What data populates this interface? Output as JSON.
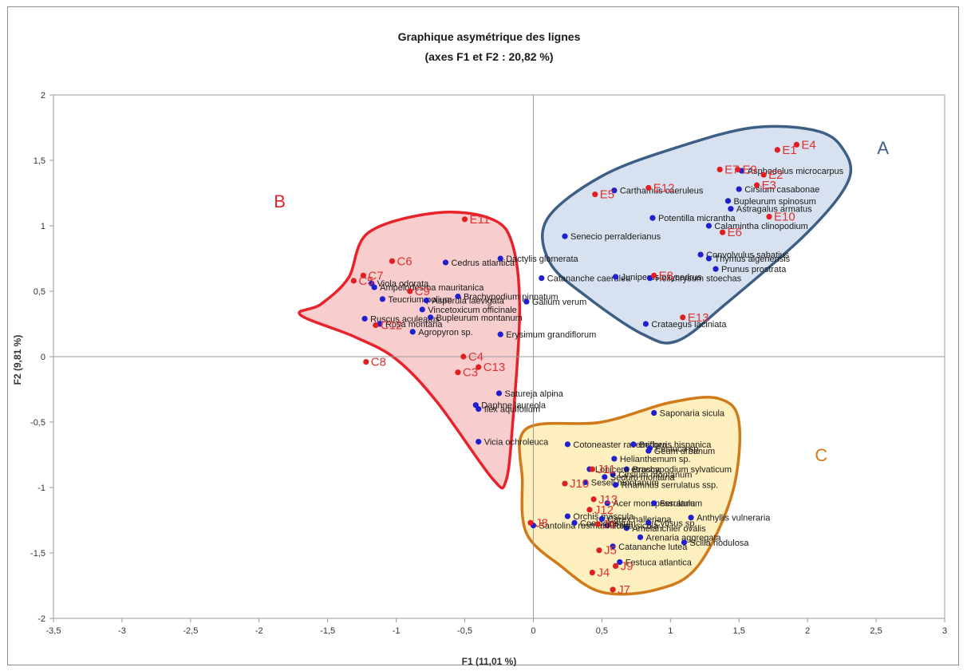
{
  "chart_data": {
    "type": "scatter",
    "title": "Graphique asymétrique des lignes",
    "subtitle": "(axes F1 et F2 : 20,82 %)",
    "xlabel": "F1 (11,01 %)",
    "ylabel": "F2 (9,81 %)",
    "xlim": [
      -3.5,
      3
    ],
    "ylim": [
      -2,
      2
    ],
    "xticks": [
      "-3,5",
      "-3",
      "-2,5",
      "-2",
      "-1,5",
      "-1",
      "-0,5",
      "0",
      "0,5",
      "1",
      "1,5",
      "2",
      "2,5",
      "3"
    ],
    "yticks": [
      "2",
      "1,5",
      "1",
      "0,5",
      "0",
      "-0,5",
      "-1",
      "-1,5",
      "-2"
    ],
    "grid": false,
    "colors": {
      "species": "#1f1fd0",
      "observations": "#e02020",
      "group_a": "#3d5f86",
      "group_b": "#e8222a",
      "group_c": "#d07a1a"
    },
    "groups": [
      {
        "label": "A",
        "color": "#3d5f86",
        "fill": "#c9d7ea",
        "hull": [
          [
            0.1,
            1.05
          ],
          [
            0.5,
            1.38
          ],
          [
            1.05,
            1.6
          ],
          [
            1.6,
            1.75
          ],
          [
            2.05,
            1.73
          ],
          [
            2.25,
            1.6
          ],
          [
            2.3,
            1.35
          ],
          [
            2.0,
            0.95
          ],
          [
            1.4,
            0.4
          ],
          [
            1.05,
            0.12
          ],
          [
            0.8,
            0.17
          ],
          [
            0.4,
            0.45
          ],
          [
            0.12,
            0.72
          ]
        ]
      },
      {
        "label": "B",
        "color": "#e8222a",
        "fill": "#f4bcbc",
        "hull": [
          [
            -1.35,
            0.6
          ],
          [
            -1.2,
            0.95
          ],
          [
            -0.7,
            1.1
          ],
          [
            -0.3,
            1.05
          ],
          [
            -0.15,
            0.85
          ],
          [
            -0.1,
            0.35
          ],
          [
            -0.15,
            -0.5
          ],
          [
            -0.2,
            -0.95
          ],
          [
            -0.3,
            -0.93
          ],
          [
            -0.7,
            -0.35
          ],
          [
            -1.0,
            -0.02
          ],
          [
            -1.3,
            0.15
          ],
          [
            -1.7,
            0.32
          ],
          [
            -1.55,
            0.4
          ]
        ]
      },
      {
        "label": "C",
        "color": "#d07a1a",
        "fill": "#fde9a8",
        "hull": [
          [
            -0.05,
            -0.55
          ],
          [
            0.5,
            -0.5
          ],
          [
            1.0,
            -0.35
          ],
          [
            1.35,
            -0.32
          ],
          [
            1.5,
            -0.5
          ],
          [
            1.45,
            -1.05
          ],
          [
            1.2,
            -1.6
          ],
          [
            0.9,
            -1.78
          ],
          [
            0.5,
            -1.8
          ],
          [
            0.2,
            -1.6
          ],
          [
            -0.05,
            -1.35
          ],
          [
            -0.08,
            -0.95
          ]
        ]
      }
    ],
    "species": [
      {
        "name": "Asphodelus microcarpus",
        "x": 1.52,
        "y": 1.42
      },
      {
        "name": "Carthamus caeruleus",
        "x": 0.59,
        "y": 1.27
      },
      {
        "name": "Cirsium casabonae",
        "x": 1.5,
        "y": 1.28
      },
      {
        "name": "Bupleurum spinosum",
        "x": 1.42,
        "y": 1.19
      },
      {
        "name": "Astragalus armatus",
        "x": 1.44,
        "y": 1.13
      },
      {
        "name": "Potentilla micrantha",
        "x": 0.87,
        "y": 1.06
      },
      {
        "name": "Calamintha clinopodium",
        "x": 1.28,
        "y": 1.0
      },
      {
        "name": "Senecio perralderianus",
        "x": 0.23,
        "y": 0.92
      },
      {
        "name": "Convolvulus sabatius",
        "x": 1.22,
        "y": 0.78
      },
      {
        "name": "Thymus algeriensis",
        "x": 1.28,
        "y": 0.75
      },
      {
        "name": "Prunus prostrata",
        "x": 1.33,
        "y": 0.67
      },
      {
        "name": "Catananche caerulea",
        "x": 0.06,
        "y": 0.6
      },
      {
        "name": "Juniperus oxycedrus",
        "x": 0.6,
        "y": 0.61
      },
      {
        "name": "Helichrysum stoechas",
        "x": 0.85,
        "y": 0.6
      },
      {
        "name": "Crataegus laciniata",
        "x": 0.82,
        "y": 0.25
      },
      {
        "name": "Dactylis glomerata",
        "x": -0.24,
        "y": 0.75
      },
      {
        "name": "Cedrus atlantica",
        "x": -0.64,
        "y": 0.72
      },
      {
        "name": "Viola odorata",
        "x": -1.18,
        "y": 0.56
      },
      {
        "name": "Ampelodesma mauritanica",
        "x": -1.16,
        "y": 0.53
      },
      {
        "name": "Brachypodium pinnatum",
        "x": -0.55,
        "y": 0.46
      },
      {
        "name": "Teucrium polium",
        "x": -1.1,
        "y": 0.44
      },
      {
        "name": "Asperula laevigata",
        "x": -0.78,
        "y": 0.43
      },
      {
        "name": "Galium verum",
        "x": -0.05,
        "y": 0.42
      },
      {
        "name": "Vincetoxicum officinale",
        "x": -0.81,
        "y": 0.36
      },
      {
        "name": "Ruscus aculeatus",
        "x": -1.23,
        "y": 0.29
      },
      {
        "name": "Bupleurum montanum",
        "x": -0.75,
        "y": 0.3
      },
      {
        "name": "Rosa montana",
        "x": -1.12,
        "y": 0.25
      },
      {
        "name": "Agropyron sp.",
        "x": -0.88,
        "y": 0.19
      },
      {
        "name": "Erysimum grandiflorum",
        "x": -0.24,
        "y": 0.17
      },
      {
        "name": "Satureja alpina",
        "x": -0.25,
        "y": -0.28
      },
      {
        "name": "Daphne laureola",
        "x": -0.42,
        "y": -0.37
      },
      {
        "name": "Ilex aquifolium",
        "x": -0.4,
        "y": -0.4
      },
      {
        "name": "Vicia ochroleuca",
        "x": -0.4,
        "y": -0.65
      },
      {
        "name": "Saponaria sicula",
        "x": 0.88,
        "y": -0.43
      },
      {
        "name": "Cotoneaster racemiflora",
        "x": 0.25,
        "y": -0.67
      },
      {
        "name": "Berberis hispanica",
        "x": 0.73,
        "y": -0.67
      },
      {
        "name": "Festuca sp.",
        "x": 0.85,
        "y": -0.7
      },
      {
        "name": "Geum urbanum",
        "x": 0.84,
        "y": -0.72
      },
      {
        "name": "Helianthemum sp.",
        "x": 0.59,
        "y": -0.78
      },
      {
        "name": "Brachypodium sylvaticum",
        "x": 0.68,
        "y": -0.86
      },
      {
        "name": "Lonicera etrusca",
        "x": 0.41,
        "y": -0.86
      },
      {
        "name": "Cirsium montanum",
        "x": 0.58,
        "y": -0.9
      },
      {
        "name": "Sedum montana",
        "x": 0.52,
        "y": -0.92
      },
      {
        "name": "Seseli montanum",
        "x": 0.38,
        "y": -0.96
      },
      {
        "name": "Rhamnus serrulatus ssp.",
        "x": 0.6,
        "y": -0.98
      },
      {
        "name": "Acer monspessulanum",
        "x": 0.54,
        "y": -1.12
      },
      {
        "name": "Serratula",
        "x": 0.88,
        "y": -1.12
      },
      {
        "name": "Anthyllis vulneraria",
        "x": 1.15,
        "y": -1.23
      },
      {
        "name": "Orchis mascula",
        "x": 0.25,
        "y": -1.22
      },
      {
        "name": "Carex halleriana",
        "x": 0.5,
        "y": -1.24
      },
      {
        "name": "Cytisus sp.",
        "x": 0.84,
        "y": -1.27
      },
      {
        "name": "Rosa sicula",
        "x": 0.54,
        "y": -1.29
      },
      {
        "name": "Amelanchier ovalis",
        "x": 0.68,
        "y": -1.31
      },
      {
        "name": "Arenaria aggregata",
        "x": 0.78,
        "y": -1.38
      },
      {
        "name": "Santolina rosmarinifolia",
        "x": 0.0,
        "y": -1.29
      },
      {
        "name": "Coeloglossum",
        "x": 0.3,
        "y": -1.27
      },
      {
        "name": "Scilla nodulosa",
        "x": 1.1,
        "y": -1.42
      },
      {
        "name": "Catananche lutea",
        "x": 0.58,
        "y": -1.45
      },
      {
        "name": "Festuca atlantica",
        "x": 0.63,
        "y": -1.57
      }
    ],
    "observations": [
      {
        "name": "E4",
        "x": 1.92,
        "y": 1.62
      },
      {
        "name": "E1",
        "x": 1.78,
        "y": 1.58
      },
      {
        "name": "E9",
        "x": 1.49,
        "y": 1.43
      },
      {
        "name": "E2",
        "x": 1.68,
        "y": 1.39
      },
      {
        "name": "E7",
        "x": 1.36,
        "y": 1.43
      },
      {
        "name": "E3",
        "x": 1.63,
        "y": 1.31
      },
      {
        "name": "E12",
        "x": 0.84,
        "y": 1.29
      },
      {
        "name": "E5",
        "x": 0.45,
        "y": 1.24
      },
      {
        "name": "E10",
        "x": 1.72,
        "y": 1.07
      },
      {
        "name": "E6",
        "x": 1.38,
        "y": 0.95
      },
      {
        "name": "E8",
        "x": 0.88,
        "y": 0.62
      },
      {
        "name": "E13",
        "x": 1.09,
        "y": 0.3
      },
      {
        "name": "E11",
        "x": -0.5,
        "y": 1.05
      },
      {
        "name": "C6",
        "x": -1.03,
        "y": 0.73
      },
      {
        "name": "C7",
        "x": -1.24,
        "y": 0.62
      },
      {
        "name": "C5",
        "x": -1.31,
        "y": 0.58
      },
      {
        "name": "C9",
        "x": -0.9,
        "y": 0.5
      },
      {
        "name": "C12",
        "x": -1.15,
        "y": 0.24
      },
      {
        "name": "C8",
        "x": -1.22,
        "y": -0.04
      },
      {
        "name": "C4",
        "x": -0.51,
        "y": 0.0
      },
      {
        "name": "C3",
        "x": -0.55,
        "y": -0.12
      },
      {
        "name": "C13",
        "x": -0.4,
        "y": -0.08
      },
      {
        "name": "J11",
        "x": 0.43,
        "y": -0.86
      },
      {
        "name": "J10",
        "x": 0.23,
        "y": -0.97
      },
      {
        "name": "J13",
        "x": 0.44,
        "y": -1.09
      },
      {
        "name": "J12",
        "x": 0.41,
        "y": -1.17
      },
      {
        "name": "J6",
        "x": 0.47,
        "y": -1.28
      },
      {
        "name": "J8",
        "x": -0.02,
        "y": -1.27
      },
      {
        "name": "J5",
        "x": 0.48,
        "y": -1.48
      },
      {
        "name": "J4",
        "x": 0.43,
        "y": -1.65
      },
      {
        "name": "J9",
        "x": 0.6,
        "y": -1.6
      },
      {
        "name": "J7",
        "x": 0.58,
        "y": -1.78
      }
    ]
  }
}
